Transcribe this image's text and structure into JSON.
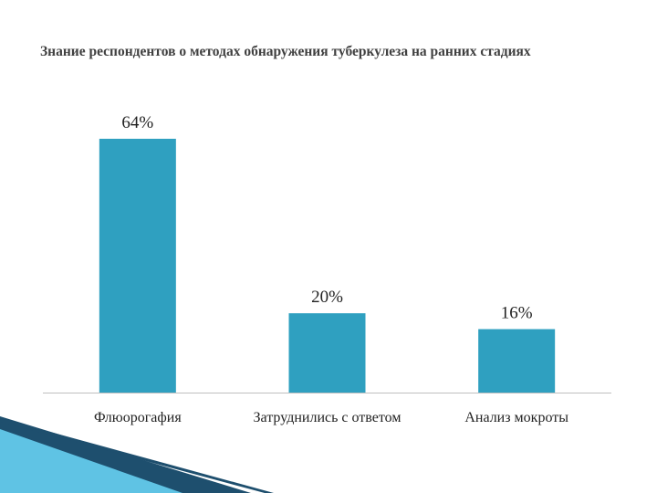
{
  "chart_data": {
    "type": "bar",
    "title": "Знание респондентов о методах обнаружения туберкулеза на ранних стадиях",
    "categories": [
      "Флюорогафия",
      "Затруднились с ответом",
      "Анализ мокроты"
    ],
    "values": [
      64,
      20,
      16
    ],
    "data_labels": [
      "64%",
      "20%",
      "16%"
    ],
    "xlabel": "",
    "ylabel": "",
    "ylim": [
      0,
      64
    ],
    "grid": false,
    "legend": "none",
    "bar_color": "#2FA0C0",
    "axis_color": "#BFBFBF"
  },
  "decoration": {
    "accent_dark": "#1E4F6E",
    "accent_light": "#5FC3E4"
  }
}
